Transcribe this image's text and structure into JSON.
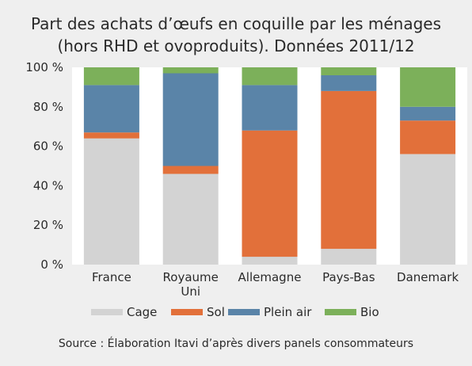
{
  "chart_data": {
    "type": "bar",
    "stacked": true,
    "title": [
      "Part des achats d’œufs en coquille par les ménages",
      "(hors RHD et ovoproduits). Données 2011/12"
    ],
    "categories": [
      [
        "France"
      ],
      [
        "Royaume",
        "Uni"
      ],
      [
        "Allemagne"
      ],
      [
        "Pays-Bas"
      ],
      [
        "Danemark"
      ]
    ],
    "series": [
      {
        "name": "Cage",
        "color": "#d3d3d3",
        "values": [
          64,
          46,
          4,
          8,
          56
        ]
      },
      {
        "name": "Sol",
        "color": "#e2703a",
        "values": [
          3,
          4,
          64,
          80,
          17
        ]
      },
      {
        "name": "Plein air",
        "color": "#5a84a8",
        "values": [
          24,
          47,
          23,
          8,
          7
        ]
      },
      {
        "name": "Bio",
        "color": "#7cb05a",
        "values": [
          9,
          3,
          9,
          4,
          20
        ]
      }
    ],
    "ylim": [
      0,
      100
    ],
    "yticks": [
      "0 %",
      "20 %",
      "40 %",
      "60 %",
      "80 %",
      "100 %"
    ],
    "ytick_values": [
      0,
      20,
      40,
      60,
      80,
      100
    ],
    "grid": false,
    "legend_position": "bottom",
    "source": "Source : Élaboration Itavi d’après divers panels consommateurs"
  }
}
